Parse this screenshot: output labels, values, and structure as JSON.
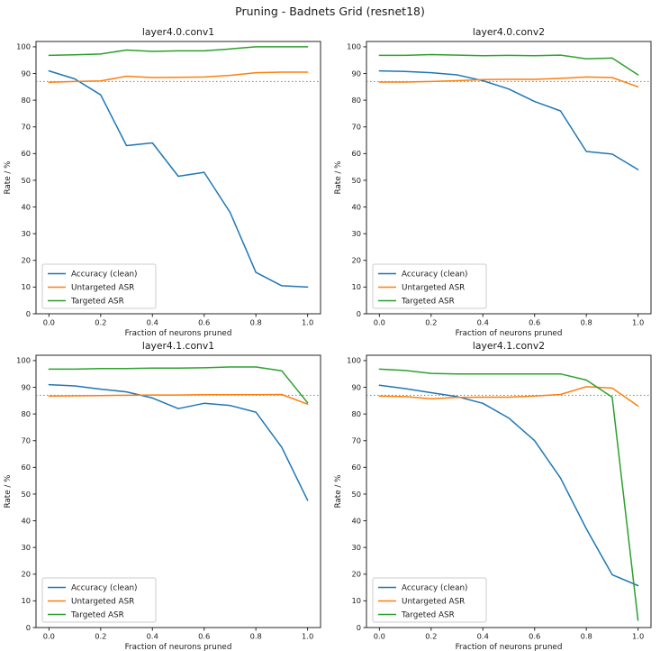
{
  "figure": {
    "title": "Pruning - Badnets Grid (resnet18)",
    "background_color": "#ffffff",
    "text_color": "#1a1a1a",
    "spine_color": "#262626"
  },
  "chart_data": [
    {
      "type": "line",
      "title": "layer4.0.conv1",
      "xlabel": "Fraction of neurons pruned",
      "ylabel": "Rate / %",
      "x": [
        0.0,
        0.1,
        0.2,
        0.3,
        0.4,
        0.5,
        0.6,
        0.7,
        0.8,
        0.9,
        1.0
      ],
      "series": [
        {
          "name": "Accuracy (clean)",
          "color": "#1f77b4",
          "values": [
            91,
            88,
            82,
            63,
            64,
            51.5,
            53,
            38,
            15.5,
            10.5,
            10
          ]
        },
        {
          "name": "Untargeted ASR",
          "color": "#ff7f0e",
          "values": [
            86.7,
            87,
            87.2,
            89,
            88.5,
            88.6,
            88.7,
            89.3,
            90.3,
            90.5,
            90.5
          ]
        },
        {
          "name": "Targeted ASR",
          "color": "#2ca02c",
          "values": [
            96.8,
            97,
            97.3,
            98.8,
            98.3,
            98.5,
            98.5,
            99.2,
            100,
            100,
            100
          ]
        }
      ],
      "reference_line": {
        "y": 87,
        "color": "#7f7f7f",
        "style": "dotted"
      },
      "xlim": [
        -0.05,
        1.05
      ],
      "ylim": [
        0,
        102
      ],
      "xticks": [
        0.0,
        0.2,
        0.4,
        0.6,
        0.8,
        1.0
      ],
      "xtick_labels": [
        "0.0",
        "0.2",
        "0.4",
        "0.6",
        "0.8",
        "1.0"
      ],
      "yticks": [
        0,
        10,
        20,
        30,
        40,
        50,
        60,
        70,
        80,
        90,
        100
      ],
      "ytick_labels": [
        "0",
        "10",
        "20",
        "30",
        "40",
        "50",
        "60",
        "70",
        "80",
        "90",
        "100"
      ],
      "legend": {
        "position": "lower-left",
        "entries": [
          "Accuracy (clean)",
          "Untargeted ASR",
          "Targeted ASR"
        ]
      },
      "grid": false
    },
    {
      "type": "line",
      "title": "layer4.0.conv2",
      "xlabel": "Fraction of neurons pruned",
      "ylabel": "Rate / %",
      "x": [
        0.0,
        0.1,
        0.2,
        0.3,
        0.4,
        0.5,
        0.6,
        0.7,
        0.8,
        0.9,
        1.0
      ],
      "series": [
        {
          "name": "Accuracy (clean)",
          "color": "#1f77b4",
          "values": [
            91,
            90.8,
            90.3,
            89.5,
            87.3,
            84.2,
            79.5,
            76,
            60.8,
            59.8,
            54
          ]
        },
        {
          "name": "Untargeted ASR",
          "color": "#ff7f0e",
          "values": [
            86.8,
            86.8,
            87,
            87.3,
            87.7,
            87.8,
            87.8,
            88.2,
            88.7,
            88.5,
            85
          ]
        },
        {
          "name": "Targeted ASR",
          "color": "#2ca02c",
          "values": [
            96.8,
            96.8,
            97.1,
            96.9,
            96.7,
            96.8,
            96.7,
            96.9,
            95.5,
            95.8,
            89.5
          ]
        }
      ],
      "reference_line": {
        "y": 87,
        "color": "#7f7f7f",
        "style": "dotted"
      },
      "xlim": [
        -0.05,
        1.05
      ],
      "ylim": [
        0,
        102
      ],
      "xticks": [
        0.0,
        0.2,
        0.4,
        0.6,
        0.8,
        1.0
      ],
      "xtick_labels": [
        "0.0",
        "0.2",
        "0.4",
        "0.6",
        "0.8",
        "1.0"
      ],
      "yticks": [
        0,
        10,
        20,
        30,
        40,
        50,
        60,
        70,
        80,
        90,
        100
      ],
      "ytick_labels": [
        "0",
        "10",
        "20",
        "30",
        "40",
        "50",
        "60",
        "70",
        "80",
        "90",
        "100"
      ],
      "legend": {
        "position": "lower-left",
        "entries": [
          "Accuracy (clean)",
          "Untargeted ASR",
          "Targeted ASR"
        ]
      },
      "grid": false
    },
    {
      "type": "line",
      "title": "layer4.1.conv1",
      "xlabel": "Fraction of neurons pruned",
      "ylabel": "Rate / %",
      "x": [
        0.0,
        0.1,
        0.2,
        0.3,
        0.4,
        0.5,
        0.6,
        0.7,
        0.8,
        0.9,
        1.0
      ],
      "series": [
        {
          "name": "Accuracy (clean)",
          "color": "#1f77b4",
          "values": [
            91,
            90.5,
            89.3,
            88.3,
            86,
            82,
            84,
            83.2,
            80.7,
            67.5,
            47.7
          ]
        },
        {
          "name": "Untargeted ASR",
          "color": "#ff7f0e",
          "values": [
            86.7,
            86.8,
            86.9,
            87,
            87.1,
            87.1,
            87.2,
            87.2,
            87.2,
            87.3,
            83.7
          ]
        },
        {
          "name": "Targeted ASR",
          "color": "#2ca02c",
          "values": [
            96.8,
            96.8,
            97,
            97,
            97.2,
            97.2,
            97.3,
            97.6,
            97.6,
            96.2,
            84.2
          ]
        }
      ],
      "reference_line": {
        "y": 87,
        "color": "#7f7f7f",
        "style": "dotted"
      },
      "xlim": [
        -0.05,
        1.05
      ],
      "ylim": [
        0,
        102
      ],
      "xticks": [
        0.0,
        0.2,
        0.4,
        0.6,
        0.8,
        1.0
      ],
      "xtick_labels": [
        "0.0",
        "0.2",
        "0.4",
        "0.6",
        "0.8",
        "1.0"
      ],
      "yticks": [
        0,
        10,
        20,
        30,
        40,
        50,
        60,
        70,
        80,
        90,
        100
      ],
      "ytick_labels": [
        "0",
        "10",
        "20",
        "30",
        "40",
        "50",
        "60",
        "70",
        "80",
        "90",
        "100"
      ],
      "legend": {
        "position": "lower-left",
        "entries": [
          "Accuracy (clean)",
          "Untargeted ASR",
          "Targeted ASR"
        ]
      },
      "grid": false
    },
    {
      "type": "line",
      "title": "layer4.1.conv2",
      "xlabel": "Fraction of neurons pruned",
      "ylabel": "Rate / %",
      "x": [
        0.0,
        0.1,
        0.2,
        0.3,
        0.4,
        0.5,
        0.6,
        0.7,
        0.8,
        0.9,
        1.0
      ],
      "series": [
        {
          "name": "Accuracy (clean)",
          "color": "#1f77b4",
          "values": [
            90.8,
            89.5,
            88,
            86.5,
            84,
            78.5,
            70,
            56,
            37,
            19.8,
            15.7
          ]
        },
        {
          "name": "Untargeted ASR",
          "color": "#ff7f0e",
          "values": [
            86.7,
            86.5,
            85.7,
            86.2,
            86.3,
            86.3,
            86.7,
            87.3,
            90.2,
            89.7,
            83
          ]
        },
        {
          "name": "Targeted ASR",
          "color": "#2ca02c",
          "values": [
            96.8,
            96.3,
            95.2,
            95,
            95,
            95,
            95,
            95,
            92.7,
            86.3,
            2.7
          ]
        }
      ],
      "reference_line": {
        "y": 87,
        "color": "#7f7f7f",
        "style": "dotted"
      },
      "xlim": [
        -0.05,
        1.05
      ],
      "ylim": [
        0,
        102
      ],
      "xticks": [
        0.0,
        0.2,
        0.4,
        0.6,
        0.8,
        1.0
      ],
      "xtick_labels": [
        "0.0",
        "0.2",
        "0.4",
        "0.6",
        "0.8",
        "1.0"
      ],
      "yticks": [
        0,
        10,
        20,
        30,
        40,
        50,
        60,
        70,
        80,
        90,
        100
      ],
      "ytick_labels": [
        "0",
        "10",
        "20",
        "30",
        "40",
        "50",
        "60",
        "70",
        "80",
        "90",
        "100"
      ],
      "legend": {
        "position": "lower-left",
        "entries": [
          "Accuracy (clean)",
          "Untargeted ASR",
          "Targeted ASR"
        ]
      },
      "grid": false
    }
  ]
}
